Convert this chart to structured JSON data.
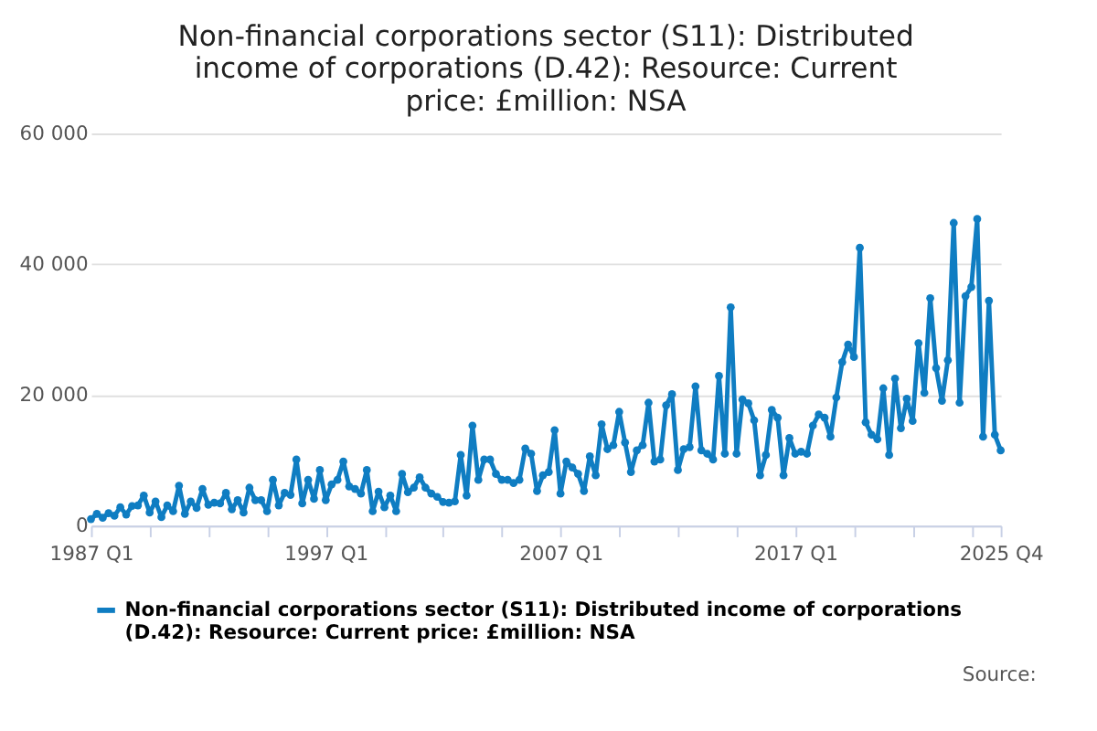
{
  "chart_data": {
    "type": "line",
    "title": "Non-financial corporations sector (S11): Distributed income of corporations (D.42): Resource: Current price: £million: NSA",
    "categories": [
      "1987 Q1",
      null,
      null,
      null,
      null,
      null,
      null,
      null,
      null,
      null,
      null,
      null,
      null,
      null,
      null,
      null,
      null,
      null,
      null,
      null,
      null,
      null,
      null,
      null,
      null,
      null,
      null,
      null,
      null,
      null,
      null,
      null,
      null,
      null,
      null,
      null,
      null,
      null,
      null,
      null,
      "1997 Q1",
      null,
      null,
      null,
      null,
      null,
      null,
      null,
      null,
      null,
      null,
      null,
      null,
      null,
      null,
      null,
      null,
      null,
      null,
      null,
      null,
      null,
      null,
      null,
      null,
      null,
      null,
      null,
      null,
      null,
      null,
      null,
      null,
      null,
      null,
      null,
      null,
      null,
      null,
      null,
      "2007 Q1",
      null,
      null,
      null,
      null,
      null,
      null,
      null,
      null,
      null,
      null,
      null,
      null,
      null,
      null,
      null,
      null,
      null,
      null,
      null,
      null,
      null,
      null,
      null,
      null,
      null,
      null,
      null,
      null,
      null,
      null,
      null,
      null,
      null,
      null,
      null,
      null,
      null,
      null,
      null,
      "2017 Q1",
      null,
      null,
      null,
      null,
      null,
      null,
      null,
      null,
      null,
      null,
      null,
      null,
      null,
      null,
      null,
      null,
      null,
      null,
      null,
      null,
      null,
      null,
      null,
      null,
      null,
      null,
      null,
      null,
      null,
      null,
      null,
      null,
      null,
      null,
      "2025 Q4"
    ],
    "series": [
      {
        "name": "Non-financial corporations sector (S11): Distributed income of corporations (D.42): Resource: Current price: £million: NSA",
        "color": "#0f7dc2",
        "values": [
          1000,
          1800,
          1200,
          1900,
          1500,
          2800,
          1700,
          3000,
          3100,
          4600,
          2000,
          3700,
          1300,
          3100,
          2200,
          6100,
          1800,
          3700,
          2700,
          5600,
          3200,
          3500,
          3400,
          5000,
          2500,
          3900,
          2000,
          5800,
          3900,
          3900,
          2200,
          7000,
          3100,
          5000,
          4700,
          10100,
          3400,
          7000,
          4100,
          8500,
          3900,
          6300,
          7000,
          9800,
          6000,
          5600,
          4900,
          8500,
          2200,
          5200,
          2800,
          4600,
          2200,
          7900,
          5100,
          5800,
          7400,
          5800,
          4900,
          4400,
          3600,
          3500,
          3700,
          10800,
          4600,
          15300,
          7000,
          10100,
          10100,
          7900,
          7000,
          7000,
          6500,
          7000,
          11800,
          11000,
          5300,
          7700,
          8200,
          14600,
          4900,
          9800,
          8900,
          7900,
          5300,
          10600,
          7700,
          15500,
          11700,
          12300,
          17400,
          12700,
          8200,
          11500,
          12300,
          18800,
          9800,
          10100,
          18400,
          20100,
          8500,
          11700,
          12000,
          21300,
          11500,
          11000,
          10100,
          22900,
          11000,
          33400,
          11000,
          19300,
          18700,
          16100,
          7700,
          10800,
          17700,
          16500,
          7700,
          13400,
          11000,
          11300,
          11000,
          15300,
          17000,
          16500,
          13600,
          19600,
          25000,
          27700,
          25800,
          42500,
          15800,
          13900,
          13200,
          21000,
          10800,
          22500,
          14900,
          19400,
          16000,
          27900,
          20300,
          34800,
          24100,
          19100,
          25300,
          46300,
          18800,
          35100,
          36500,
          46900,
          13600,
          34400,
          13900,
          11500
        ]
      }
    ],
    "ylim": [
      0,
      60000
    ],
    "yticks": [
      {
        "value": 0,
        "label": "0"
      },
      {
        "value": 20000,
        "label": "20 000"
      },
      {
        "value": 40000,
        "label": "40 000"
      },
      {
        "value": 60000,
        "label": "60 000"
      }
    ],
    "grid": "y",
    "marker": "circle",
    "line_style": "solid",
    "legend": "bottom",
    "annotations": [
      "Source:"
    ]
  }
}
